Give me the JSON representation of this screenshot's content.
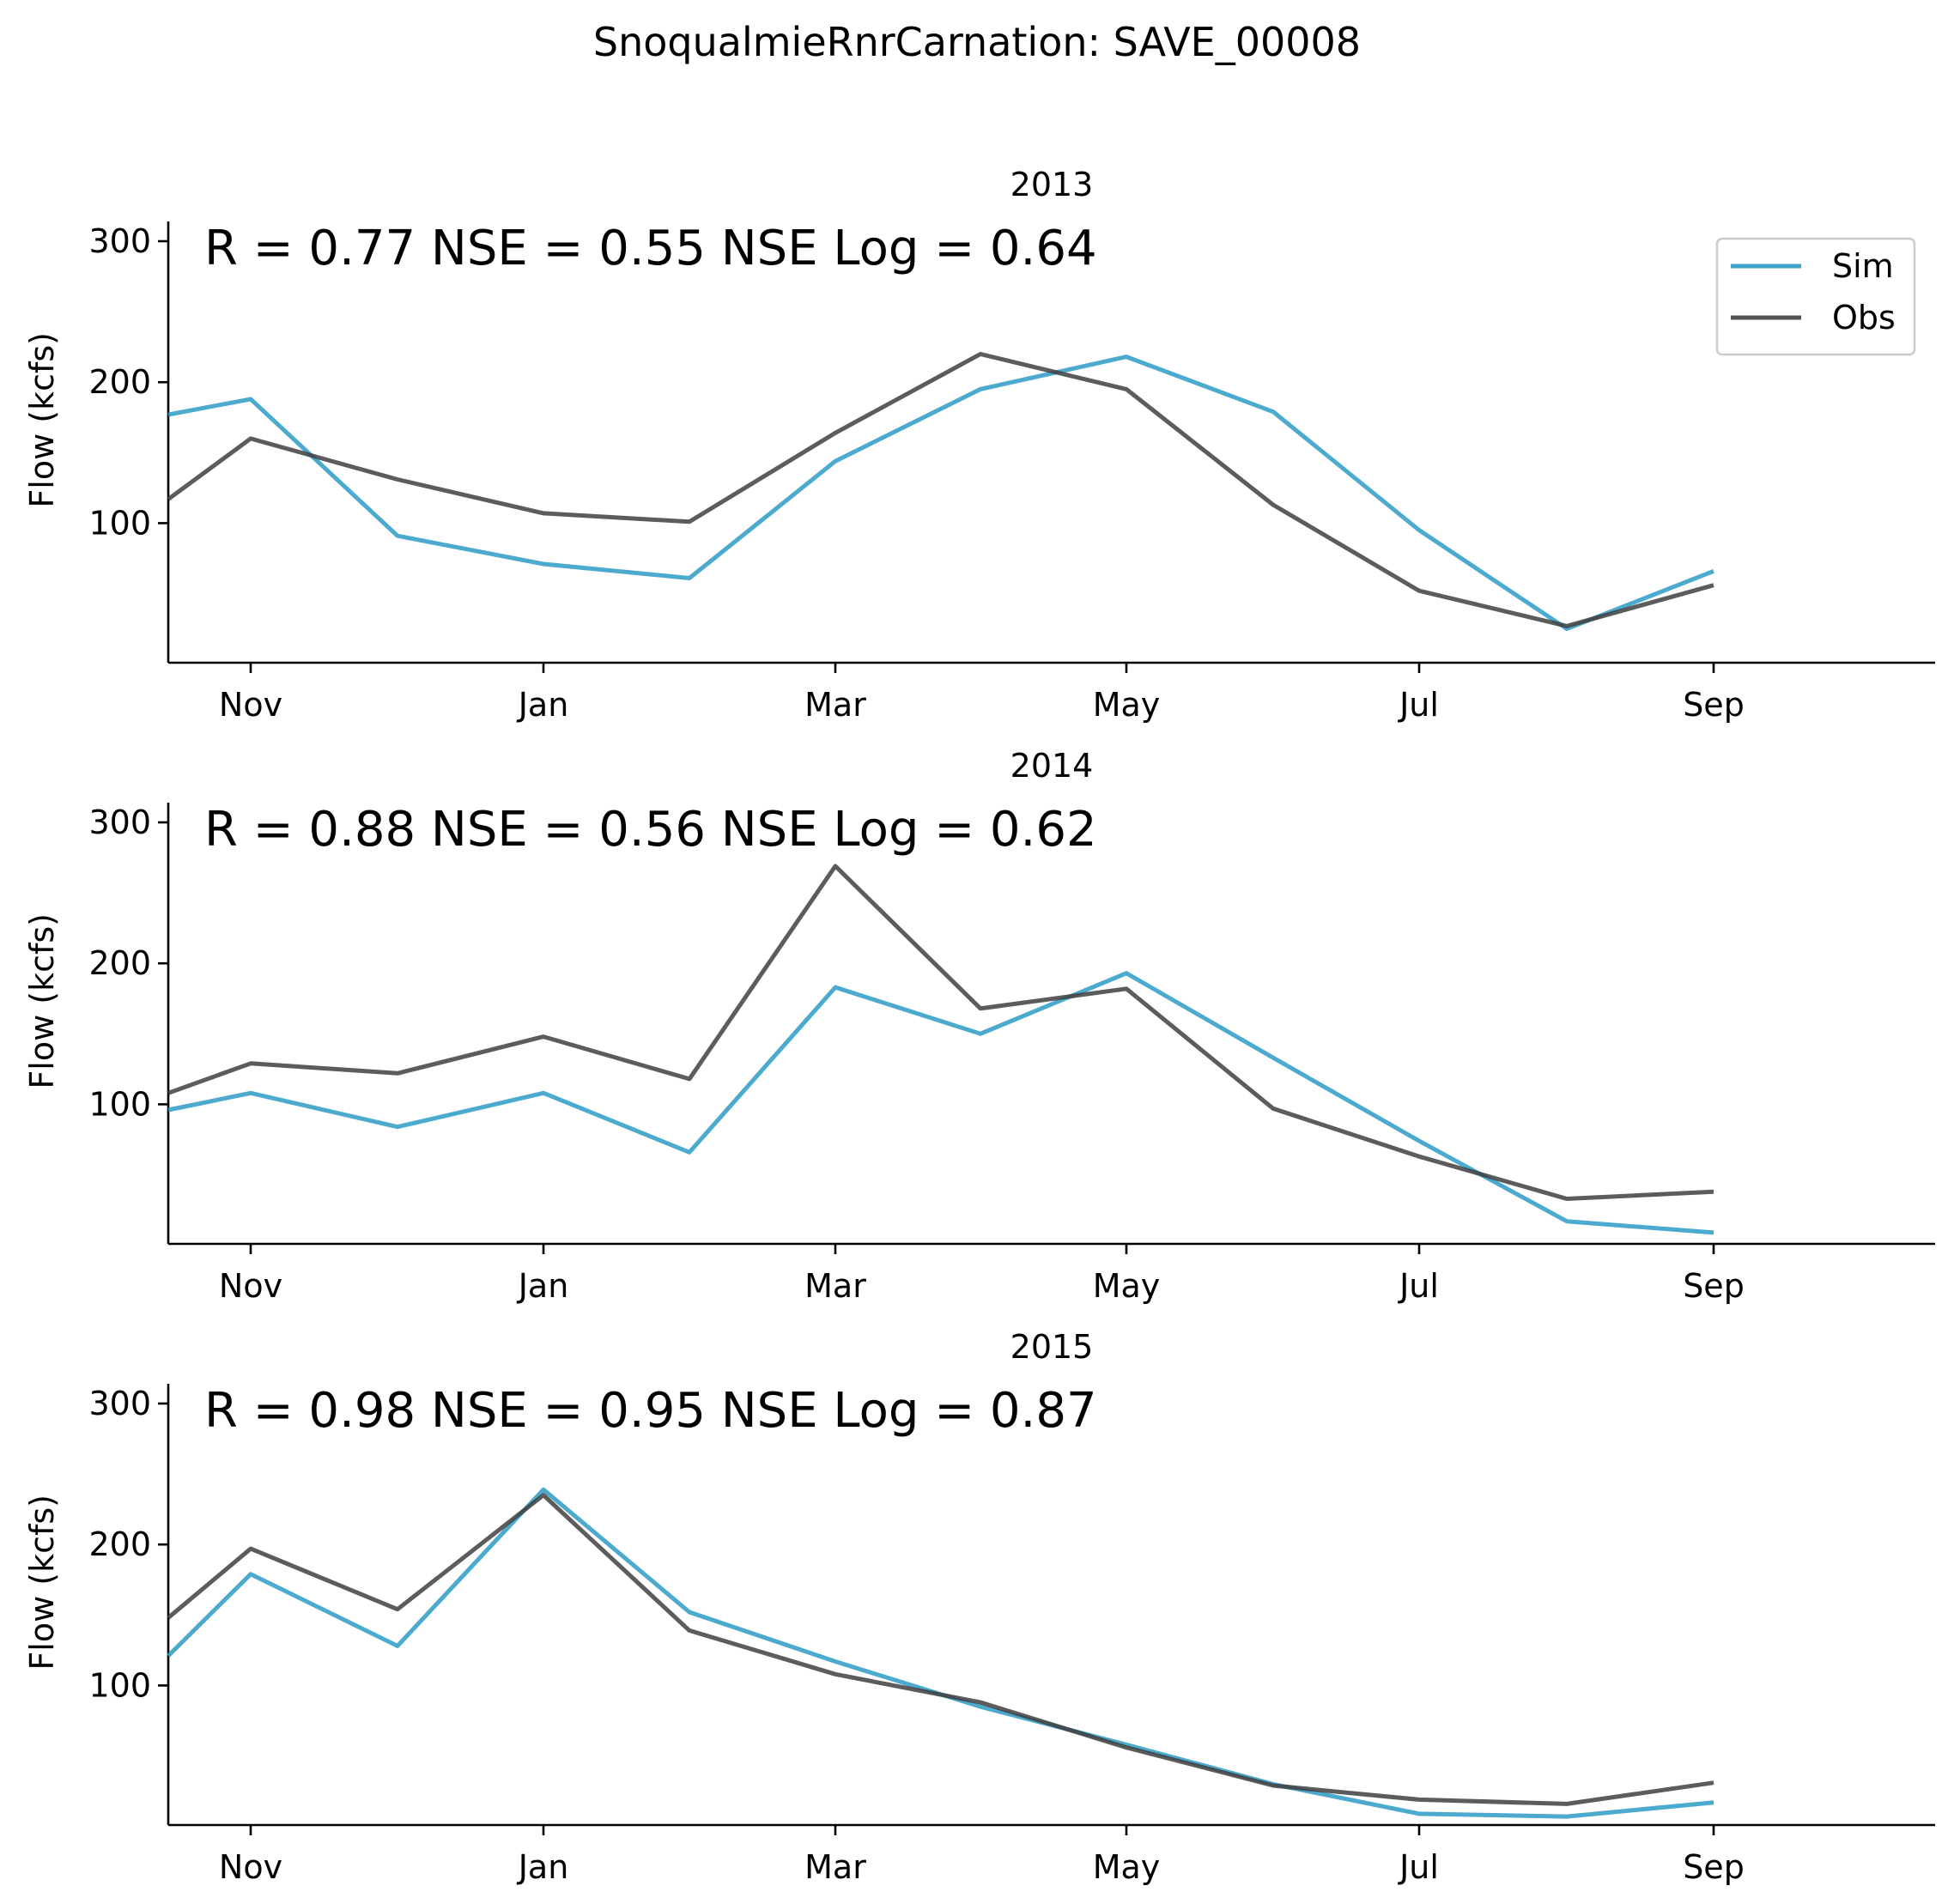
{
  "figure_title": "SnoqualmieRnrCarnation: SAVE_00008",
  "colors": {
    "sim": "#2b9bc6",
    "obs": "#404040"
  },
  "legend": {
    "sim_label": "Sim",
    "obs_label": "Obs"
  },
  "chart_data": [
    {
      "type": "line",
      "title": "2013",
      "ylabel": "Flow (kcfs)",
      "stats_text": "R = 0.77  NSE = 0.55  NSE Log = 0.64",
      "x_tick_labels": [
        "Nov",
        "Jan",
        "Mar",
        "May",
        "Jul",
        "Sep"
      ],
      "y_ticks": [
        100,
        200,
        300
      ],
      "ylim": [
        1,
        314
      ],
      "legend": true,
      "series": [
        {
          "name": "Sim",
          "x": [
            "2012-10-01",
            "2012-11-01",
            "2012-12-01",
            "2013-01-01",
            "2013-02-01",
            "2013-03-01",
            "2013-04-01",
            "2013-05-01",
            "2013-06-01",
            "2013-07-01",
            "2013-08-01",
            "2013-09-01"
          ],
          "values": [
            177,
            188,
            91,
            71,
            61,
            144,
            195,
            218,
            179,
            95,
            25,
            66
          ]
        },
        {
          "name": "Obs",
          "x": [
            "2012-10-01",
            "2012-11-01",
            "2012-12-01",
            "2013-01-01",
            "2013-02-01",
            "2013-03-01",
            "2013-04-01",
            "2013-05-01",
            "2013-06-01",
            "2013-07-01",
            "2013-08-01",
            "2013-09-01"
          ],
          "values": [
            117,
            160,
            131,
            107,
            101,
            164,
            220,
            195,
            113,
            52,
            27,
            56
          ]
        }
      ]
    },
    {
      "type": "line",
      "title": "2014",
      "ylabel": "Flow (kcfs)",
      "stats_text": "R = 0.88  NSE = 0.56  NSE Log = 0.62",
      "x_tick_labels": [
        "Nov",
        "Jan",
        "Mar",
        "May",
        "Jul",
        "Sep"
      ],
      "y_ticks": [
        100,
        200,
        300
      ],
      "ylim": [
        1,
        314
      ],
      "legend": false,
      "series": [
        {
          "name": "Sim",
          "x": [
            "2013-10-01",
            "2013-11-01",
            "2013-12-01",
            "2014-01-01",
            "2014-02-01",
            "2014-03-01",
            "2014-04-01",
            "2014-05-01",
            "2014-06-01",
            "2014-07-01",
            "2014-08-01",
            "2014-09-01"
          ],
          "values": [
            96,
            108,
            84,
            108,
            66,
            183,
            150,
            193,
            133,
            74,
            17,
            9
          ]
        },
        {
          "name": "Obs",
          "x": [
            "2013-10-01",
            "2013-11-01",
            "2013-12-01",
            "2014-01-01",
            "2014-02-01",
            "2014-03-01",
            "2014-04-01",
            "2014-05-01",
            "2014-06-01",
            "2014-07-01",
            "2014-08-01",
            "2014-09-01"
          ],
          "values": [
            108,
            129,
            122,
            148,
            118,
            269,
            168,
            182,
            97,
            63,
            33,
            38
          ]
        }
      ]
    },
    {
      "type": "line",
      "title": "2015",
      "ylabel": "Flow (kcfs)",
      "stats_text": "R = 0.98  NSE = 0.95  NSE Log = 0.87",
      "x_tick_labels": [
        "Nov",
        "Jan",
        "Mar",
        "May",
        "Jul",
        "Sep"
      ],
      "y_ticks": [
        100,
        200,
        300
      ],
      "ylim": [
        1,
        314
      ],
      "legend": false,
      "series": [
        {
          "name": "Sim",
          "x": [
            "2014-10-01",
            "2014-11-01",
            "2014-12-01",
            "2015-01-01",
            "2015-02-01",
            "2015-03-01",
            "2015-04-01",
            "2015-05-01",
            "2015-06-01",
            "2015-07-01",
            "2015-08-01",
            "2015-09-01"
          ],
          "values": [
            121,
            179,
            128,
            239,
            152,
            117,
            85,
            58,
            30,
            9,
            7,
            17
          ]
        },
        {
          "name": "Obs",
          "x": [
            "2014-10-01",
            "2014-11-01",
            "2014-12-01",
            "2015-01-01",
            "2015-02-01",
            "2015-03-01",
            "2015-04-01",
            "2015-05-01",
            "2015-06-01",
            "2015-07-01",
            "2015-08-01",
            "2015-09-01"
          ],
          "values": [
            148,
            197,
            154,
            235,
            139,
            108,
            88,
            56,
            29,
            19,
            16,
            31
          ]
        }
      ]
    }
  ]
}
